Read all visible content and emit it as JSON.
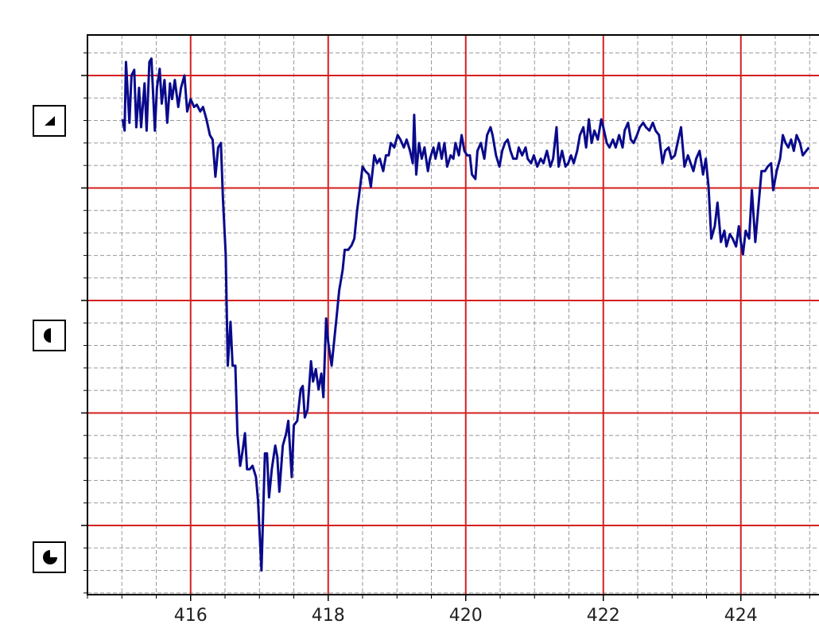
{
  "chart_data": {
    "type": "line",
    "xlim": [
      414.5,
      425.16
    ],
    "ylim": [
      -0.615,
      4.36
    ],
    "xticks": [
      416,
      418,
      420,
      422,
      424
    ],
    "yticks": [
      0,
      1,
      2,
      3,
      4
    ],
    "grid": true,
    "minor_grid": true,
    "series": [
      {
        "color": "#0a0a8c",
        "x": [
          415.01,
          415.04,
          415.06,
          415.11,
          415.14,
          415.18,
          415.21,
          415.25,
          415.28,
          415.33,
          415.36,
          415.4,
          415.43,
          415.48,
          415.51,
          415.55,
          415.58,
          415.62,
          415.66,
          415.7,
          415.73,
          415.77,
          415.82,
          415.86,
          415.91,
          415.95,
          416.0,
          416.05,
          416.09,
          416.14,
          416.18,
          416.23,
          416.28,
          416.32,
          416.36,
          416.4,
          416.44,
          416.47,
          416.51,
          416.54,
          416.58,
          416.61,
          416.65,
          416.68,
          416.72,
          416.75,
          416.79,
          416.82,
          416.86,
          416.9,
          416.95,
          416.98,
          417.03,
          417.08,
          417.11,
          417.14,
          417.18,
          417.23,
          417.26,
          417.29,
          417.34,
          417.39,
          417.42,
          417.47,
          417.5,
          417.55,
          417.6,
          417.63,
          417.66,
          417.7,
          417.75,
          417.78,
          417.82,
          417.86,
          417.9,
          417.93,
          417.97,
          418.0,
          418.05,
          418.08,
          418.12,
          418.16,
          418.21,
          418.24,
          418.29,
          418.34,
          418.38,
          418.42,
          418.45,
          418.5,
          418.54,
          418.59,
          418.62,
          418.67,
          418.71,
          418.75,
          418.8,
          418.84,
          418.88,
          418.91,
          418.96,
          419.01,
          419.05,
          419.1,
          419.14,
          419.19,
          419.23,
          419.25,
          419.28,
          419.32,
          419.36,
          419.4,
          419.45,
          419.48,
          419.53,
          419.56,
          419.61,
          419.65,
          419.69,
          419.73,
          419.78,
          419.82,
          419.85,
          419.9,
          419.94,
          419.98,
          420.02,
          420.06,
          420.09,
          420.14,
          420.17,
          420.22,
          420.27,
          420.31,
          420.36,
          420.39,
          420.44,
          420.49,
          420.53,
          420.57,
          420.61,
          420.65,
          420.69,
          420.74,
          420.77,
          420.82,
          420.87,
          420.9,
          420.95,
          420.99,
          421.04,
          421.09,
          421.13,
          421.18,
          421.23,
          421.27,
          421.32,
          421.35,
          421.4,
          421.45,
          421.49,
          421.53,
          421.57,
          421.62,
          421.66,
          421.71,
          421.75,
          421.79,
          421.83,
          421.87,
          421.92,
          421.97,
          422.0,
          422.05,
          422.09,
          422.14,
          422.18,
          422.23,
          422.28,
          422.31,
          422.36,
          422.4,
          422.44,
          422.49,
          422.53,
          422.58,
          422.62,
          422.67,
          422.72,
          422.76,
          422.81,
          422.86,
          422.9,
          422.95,
          422.99,
          423.04,
          423.09,
          423.13,
          423.18,
          423.23,
          423.27,
          423.31,
          423.35,
          423.4,
          423.45,
          423.49,
          423.53,
          423.57,
          423.62,
          423.66,
          423.71,
          423.76,
          423.79,
          423.84,
          423.88,
          423.93,
          423.97,
          424.0,
          424.03,
          424.07,
          424.12,
          424.16,
          424.21,
          424.25,
          424.3,
          424.35,
          424.39,
          424.44,
          424.47,
          424.52,
          424.57,
          424.61,
          424.65,
          424.69,
          424.73,
          424.77,
          424.81,
          424.86,
          424.9,
          424.95,
          424.99
        ],
        "values": [
          3.61,
          3.51,
          4.12,
          3.58,
          4.0,
          4.05,
          3.54,
          3.89,
          3.54,
          3.93,
          3.51,
          4.12,
          4.15,
          3.51,
          3.89,
          4.06,
          3.75,
          3.96,
          3.58,
          3.93,
          3.79,
          3.96,
          3.72,
          3.89,
          4.0,
          3.68,
          3.79,
          3.72,
          3.74,
          3.68,
          3.72,
          3.61,
          3.47,
          3.43,
          3.1,
          3.36,
          3.4,
          2.9,
          2.41,
          1.42,
          1.81,
          1.42,
          1.42,
          0.82,
          0.53,
          0.64,
          0.82,
          0.5,
          0.5,
          0.53,
          0.43,
          0.22,
          -0.4,
          0.64,
          0.64,
          0.25,
          0.5,
          0.71,
          0.61,
          0.3,
          0.71,
          0.82,
          0.93,
          0.43,
          0.89,
          0.93,
          1.21,
          1.24,
          0.96,
          1.03,
          1.46,
          1.28,
          1.39,
          1.21,
          1.35,
          1.14,
          1.84,
          1.63,
          1.42,
          1.6,
          1.84,
          2.09,
          2.27,
          2.45,
          2.45,
          2.49,
          2.55,
          2.8,
          2.94,
          3.19,
          3.15,
          3.12,
          3.01,
          3.29,
          3.22,
          3.26,
          3.15,
          3.29,
          3.29,
          3.4,
          3.36,
          3.47,
          3.43,
          3.36,
          3.43,
          3.33,
          3.22,
          3.65,
          3.12,
          3.4,
          3.26,
          3.36,
          3.15,
          3.26,
          3.36,
          3.26,
          3.4,
          3.26,
          3.4,
          3.19,
          3.29,
          3.26,
          3.4,
          3.29,
          3.47,
          3.33,
          3.29,
          3.29,
          3.12,
          3.08,
          3.33,
          3.4,
          3.26,
          3.47,
          3.54,
          3.47,
          3.29,
          3.19,
          3.33,
          3.4,
          3.43,
          3.33,
          3.26,
          3.26,
          3.36,
          3.29,
          3.36,
          3.26,
          3.22,
          3.29,
          3.19,
          3.26,
          3.22,
          3.33,
          3.19,
          3.26,
          3.54,
          3.19,
          3.33,
          3.19,
          3.22,
          3.29,
          3.22,
          3.33,
          3.47,
          3.54,
          3.36,
          3.61,
          3.4,
          3.51,
          3.43,
          3.61,
          3.54,
          3.4,
          3.36,
          3.43,
          3.36,
          3.47,
          3.36,
          3.51,
          3.58,
          3.43,
          3.4,
          3.47,
          3.54,
          3.58,
          3.54,
          3.51,
          3.58,
          3.51,
          3.47,
          3.22,
          3.33,
          3.36,
          3.26,
          3.29,
          3.43,
          3.54,
          3.19,
          3.29,
          3.22,
          3.15,
          3.26,
          3.33,
          3.12,
          3.26,
          3.01,
          2.55,
          2.66,
          2.87,
          2.52,
          2.62,
          2.48,
          2.59,
          2.55,
          2.48,
          2.66,
          2.52,
          2.41,
          2.62,
          2.55,
          2.98,
          2.52,
          2.8,
          3.15,
          3.15,
          3.19,
          3.22,
          2.98,
          3.15,
          3.26,
          3.47,
          3.4,
          3.36,
          3.43,
          3.33,
          3.47,
          3.4,
          3.29,
          3.33,
          3.36
        ]
      }
    ]
  }
}
